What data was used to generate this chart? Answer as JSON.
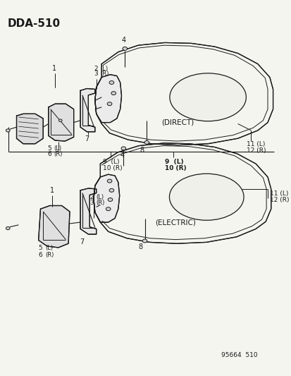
{
  "title": "DDA-510",
  "background_color": "#f5f5f0",
  "line_color": "#1a1a1a",
  "text_color": "#1a1a1a",
  "fig_width": 4.14,
  "fig_height": 5.33,
  "watermark": "95664  510",
  "top_label": "(DIRECT)",
  "bottom_label": "(ELECTRIC)"
}
